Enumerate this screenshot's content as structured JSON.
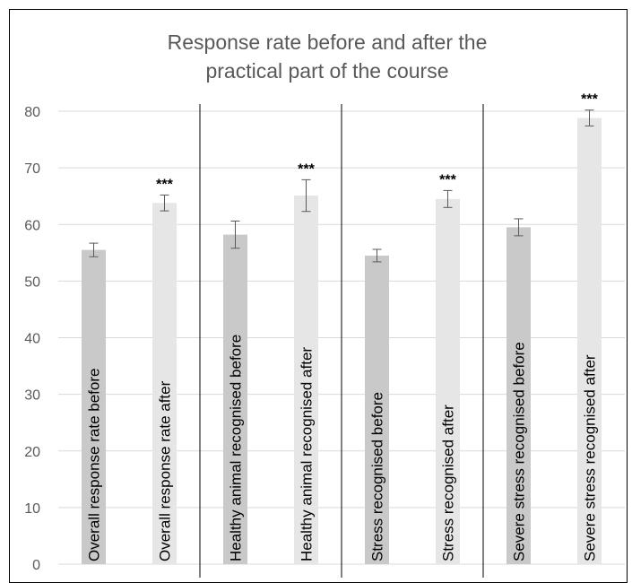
{
  "chart_data": {
    "type": "bar",
    "title": "Response rate before and after the practical part of the course",
    "title_lines": [
      "Response rate before and after the",
      "practical part of the course"
    ],
    "xlabel": "",
    "ylabel": "",
    "ylim": [
      0,
      80
    ],
    "yticks": [
      0,
      10,
      20,
      30,
      40,
      50,
      60,
      70,
      80
    ],
    "ytick_labels": [
      "0",
      "10",
      "20",
      "30",
      "40",
      "50",
      "60",
      "70",
      "80"
    ],
    "grid": "horizontal",
    "legend": "none",
    "categories": [
      "Overall response rate before",
      "Overall response rate after",
      "Healthy animal recognised before",
      "Healthy animal recognised after",
      "Stress recognised before",
      "Stress recognised after",
      "Severe stress recognised before",
      "Severe stress recognised after"
    ],
    "values": [
      55.5,
      63.8,
      58.2,
      65.1,
      54.5,
      64.5,
      59.5,
      78.8
    ],
    "error": [
      1.2,
      1.4,
      2.4,
      2.8,
      1.1,
      1.5,
      1.5,
      1.4
    ],
    "significance": [
      "",
      "***",
      "",
      "***",
      "",
      "***",
      "",
      "***"
    ],
    "colors": [
      "#c9c9c9",
      "#e6e6e6",
      "#c9c9c9",
      "#e6e6e6",
      "#c9c9c9",
      "#e6e6e6",
      "#c9c9c9",
      "#e6e6e6"
    ],
    "group_dividers": true
  }
}
